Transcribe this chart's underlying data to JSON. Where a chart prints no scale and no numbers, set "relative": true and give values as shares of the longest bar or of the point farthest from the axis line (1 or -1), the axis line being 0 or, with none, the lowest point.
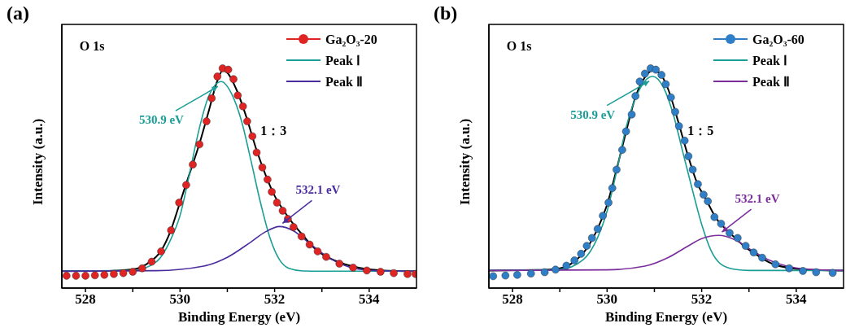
{
  "chart_data": [
    {
      "type": "line",
      "title": "(a)",
      "xlabel": "Binding Energy (eV)",
      "ylabel": "Intensity (a.u.)",
      "relative": true,
      "tick_labels": "x",
      "legend": "top right",
      "xlim": [
        527.5,
        535
      ],
      "xticks": [
        528,
        {
          "value": 529,
          "label": null
        },
        530,
        {
          "value": 531,
          "label": null
        },
        532,
        {
          "value": 533,
          "label": null
        },
        534
      ],
      "annotations": [
        "O 1s",
        "1：3",
        {
          "text": "530.9 eV",
          "x": 530.87,
          "y": 0.94
        },
        {
          "text": "532.1 eV",
          "x": 532.1,
          "y": 0.28
        }
      ],
      "series": [
        {
          "name": "Ga₂O₃-20",
          "type": "scatter",
          "marker": "circle",
          "color": "#e02424",
          "x": [
            527.6,
            527.8,
            528.0,
            528.2,
            528.4,
            528.6,
            528.8,
            529.0,
            529.2,
            529.4,
            529.6,
            529.81,
            529.98,
            530.13,
            530.27,
            530.41,
            530.56,
            530.67,
            530.79,
            530.9,
            531.02,
            531.13,
            531.22,
            531.33,
            531.42,
            531.53,
            531.62,
            531.74,
            531.85,
            531.94,
            532.05,
            532.17,
            532.28,
            532.4,
            532.57,
            532.74,
            532.91,
            533.09,
            533.37,
            533.66,
            533.95,
            534.24,
            534.52,
            534.81,
            534.98
          ],
          "values": [
            0.056,
            0.056,
            0.056,
            0.058,
            0.06,
            0.064,
            0.068,
            0.074,
            0.09,
            0.12,
            0.167,
            0.263,
            0.389,
            0.469,
            0.562,
            0.654,
            0.759,
            0.864,
            0.963,
            1.0,
            0.994,
            0.951,
            0.877,
            0.827,
            0.759,
            0.691,
            0.617,
            0.549,
            0.494,
            0.438,
            0.389,
            0.352,
            0.315,
            0.278,
            0.235,
            0.198,
            0.167,
            0.142,
            0.111,
            0.093,
            0.08,
            0.074,
            0.068,
            0.064,
            0.064
          ]
        },
        {
          "type": "line",
          "color": "#000000",
          "x": [
            527.5,
            528.5,
            529.0,
            529.3,
            529.6,
            529.8,
            530.0,
            530.2,
            530.4,
            530.6,
            530.8,
            530.9,
            531.0,
            531.2,
            531.4,
            531.6,
            531.8,
            532.0,
            532.2,
            532.4,
            532.6,
            532.8,
            533.0,
            533.4,
            533.8,
            534.3,
            535.0
          ],
          "values": [
            0.077,
            0.078,
            0.085,
            0.11,
            0.17,
            0.26,
            0.39,
            0.52,
            0.65,
            0.8,
            0.95,
            0.99,
            0.98,
            0.9,
            0.78,
            0.64,
            0.52,
            0.42,
            0.35,
            0.29,
            0.24,
            0.19,
            0.155,
            0.115,
            0.092,
            0.08,
            0.077
          ]
        },
        {
          "name": "Peak Ⅰ",
          "type": "line",
          "color": "#1a9e96",
          "x": [
            527.5,
            529.0,
            529.5,
            529.8,
            530.0,
            530.2,
            530.4,
            530.6,
            530.87,
            531.1,
            531.3,
            531.5,
            531.7,
            531.9,
            532.1,
            532.3,
            532.6,
            533.0,
            535.0
          ],
          "values": [
            0.077,
            0.08,
            0.12,
            0.22,
            0.33,
            0.52,
            0.72,
            0.87,
            0.94,
            0.88,
            0.76,
            0.58,
            0.39,
            0.23,
            0.13,
            0.09,
            0.078,
            0.077,
            0.077
          ]
        },
        {
          "name": "Peak Ⅱ",
          "type": "line",
          "color": "#4b2c9e",
          "x": [
            527.5,
            529.5,
            530.5,
            531.0,
            531.5,
            531.8,
            532.1,
            532.4,
            532.7,
            533.0,
            533.4,
            533.8,
            534.3,
            535.0
          ],
          "values": [
            0.077,
            0.079,
            0.1,
            0.14,
            0.21,
            0.255,
            0.28,
            0.26,
            0.21,
            0.16,
            0.11,
            0.085,
            0.078,
            0.077
          ]
        }
      ]
    },
    {
      "type": "line",
      "title": "(b)",
      "xlabel": "Binding Energy (eV)",
      "ylabel": "Intensity (a.u.)",
      "relative": true,
      "tick_labels": "x",
      "legend": "top right",
      "xlim": [
        527.5,
        535
      ],
      "xticks": [
        528,
        {
          "value": 529,
          "label": null
        },
        530,
        {
          "value": 531,
          "label": null
        },
        532,
        {
          "value": 533,
          "label": null
        },
        534
      ],
      "annotations": [
        "O 1s",
        "1：5",
        {
          "text": "530.9 eV",
          "x": 530.96,
          "y": 0.964
        },
        {
          "text": "532.1 eV",
          "x": 532.36,
          "y": 0.24
        }
      ],
      "series": [
        {
          "name": "Ga₂O₃-60",
          "type": "scatter",
          "marker": "circle",
          "color": "#2f7fc8",
          "x": [
            527.59,
            527.85,
            528.1,
            528.39,
            528.68,
            528.91,
            529.14,
            529.31,
            529.45,
            529.57,
            529.68,
            529.8,
            529.91,
            530.03,
            530.11,
            530.2,
            530.32,
            530.4,
            530.52,
            530.6,
            530.69,
            530.8,
            530.92,
            531.03,
            531.15,
            531.24,
            531.35,
            531.44,
            531.52,
            531.64,
            531.72,
            531.81,
            531.92,
            532.04,
            532.13,
            532.27,
            532.41,
            532.59,
            532.76,
            532.93,
            533.1,
            533.28,
            533.56,
            533.85,
            534.14,
            534.42,
            534.77
          ],
          "values": [
            0.054,
            0.057,
            0.06,
            0.066,
            0.072,
            0.084,
            0.102,
            0.126,
            0.156,
            0.192,
            0.228,
            0.269,
            0.329,
            0.389,
            0.455,
            0.539,
            0.629,
            0.713,
            0.79,
            0.874,
            0.94,
            0.976,
            1.0,
            0.994,
            0.97,
            0.928,
            0.868,
            0.802,
            0.737,
            0.671,
            0.6,
            0.539,
            0.473,
            0.425,
            0.395,
            0.323,
            0.293,
            0.251,
            0.228,
            0.192,
            0.162,
            0.138,
            0.108,
            0.09,
            0.078,
            0.072,
            0.069
          ]
        },
        {
          "type": "line",
          "color": "#000000",
          "x": [
            527.5,
            528.5,
            529.0,
            529.3,
            529.6,
            529.8,
            530.0,
            530.2,
            530.4,
            530.6,
            530.8,
            530.96,
            531.1,
            531.3,
            531.5,
            531.7,
            531.9,
            532.1,
            532.3,
            532.5,
            532.7,
            532.9,
            533.1,
            533.5,
            533.9,
            534.4,
            535.0
          ],
          "values": [
            0.08,
            0.082,
            0.09,
            0.12,
            0.19,
            0.27,
            0.38,
            0.54,
            0.71,
            0.87,
            0.96,
            0.99,
            0.98,
            0.9,
            0.76,
            0.61,
            0.48,
            0.4,
            0.32,
            0.27,
            0.23,
            0.19,
            0.16,
            0.11,
            0.09,
            0.082,
            0.08
          ]
        },
        {
          "name": "Peak Ⅰ",
          "type": "line",
          "color": "#1a9e96",
          "x": [
            527.5,
            529.0,
            529.5,
            529.8,
            530.0,
            530.2,
            530.4,
            530.7,
            530.96,
            531.2,
            531.4,
            531.6,
            531.8,
            532.0,
            532.2,
            532.4,
            532.7,
            533.0,
            535.0
          ],
          "values": [
            0.08,
            0.085,
            0.13,
            0.23,
            0.35,
            0.53,
            0.73,
            0.91,
            0.964,
            0.91,
            0.79,
            0.62,
            0.45,
            0.29,
            0.17,
            0.11,
            0.085,
            0.08,
            0.08
          ]
        },
        {
          "name": "Peak Ⅱ",
          "type": "line",
          "color": "#7b2d9c",
          "x": [
            527.5,
            530.0,
            530.8,
            531.3,
            531.7,
            532.0,
            532.36,
            532.7,
            533.0,
            533.4,
            533.8,
            534.3,
            535.0
          ],
          "values": [
            0.08,
            0.083,
            0.1,
            0.14,
            0.19,
            0.225,
            0.24,
            0.22,
            0.18,
            0.13,
            0.1,
            0.085,
            0.08
          ]
        }
      ]
    }
  ]
}
